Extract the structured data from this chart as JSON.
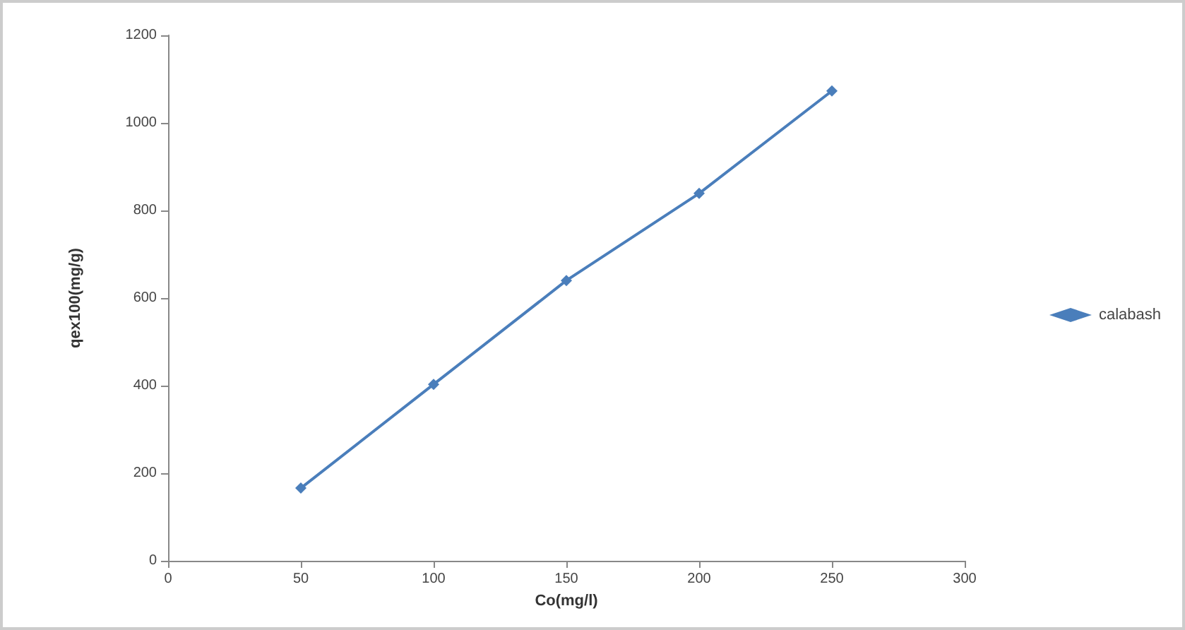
{
  "chart_data": {
    "type": "line",
    "xlabel": "Co(mg/l)",
    "ylabel": "qex100(mg/g)",
    "x": [
      50,
      100,
      150,
      200,
      250
    ],
    "series": [
      {
        "name": "calabash",
        "color": "#4a7ebb",
        "values": [
          166,
          403,
          640,
          839,
          1073
        ]
      }
    ],
    "xlim": [
      0,
      300
    ],
    "xticks": [
      0,
      50,
      100,
      150,
      200,
      250,
      300
    ],
    "ylim": [
      0,
      1200
    ],
    "yticks": [
      0,
      200,
      400,
      600,
      800,
      1000,
      1200
    ],
    "grid": false,
    "legend": "right",
    "marker": "diamond",
    "line_style": "solid"
  }
}
